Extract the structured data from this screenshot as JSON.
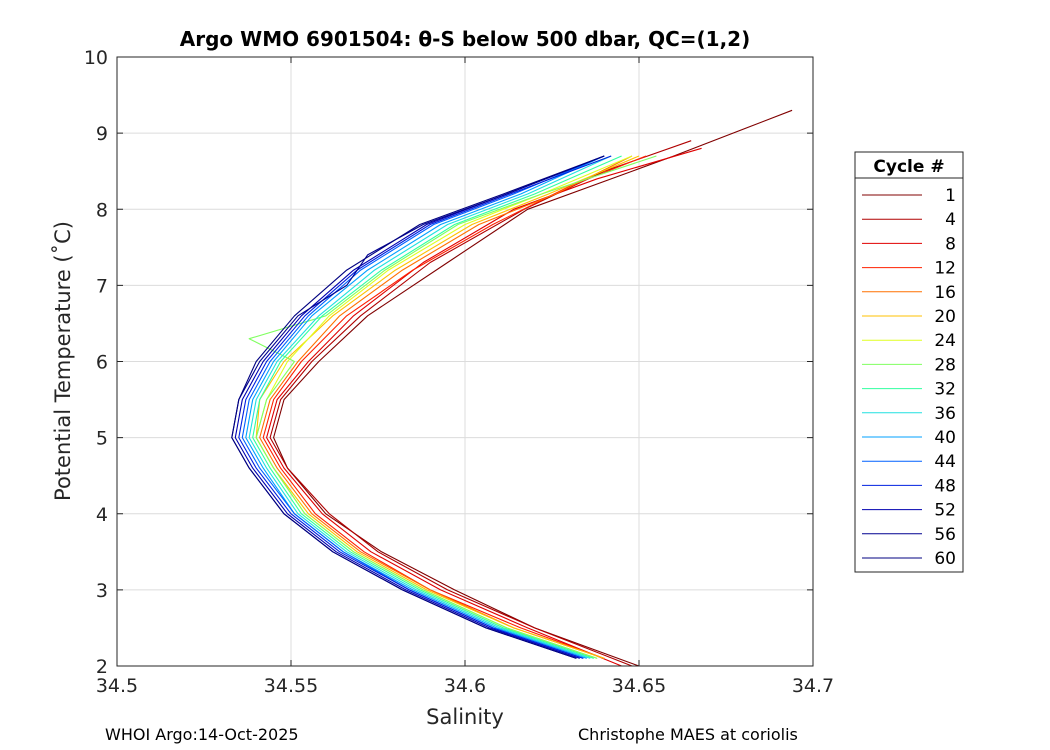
{
  "chart_data": {
    "type": "line",
    "title": "Argo WMO 6901504: θ-S below 500 dbar,  QC=(1,2)",
    "xlabel": "Salinity",
    "ylabel": "Potential Temperature (˚C)",
    "xlim": [
      34.5,
      34.7
    ],
    "ylim": [
      2,
      10
    ],
    "xticks": [
      "34.5",
      "34.55",
      "34.6",
      "34.65",
      "34.7"
    ],
    "yticks": [
      "2",
      "3",
      "4",
      "5",
      "6",
      "7",
      "8",
      "9",
      "10"
    ],
    "grid": true,
    "legend": {
      "title": "Cycle #",
      "placement": "outside-right",
      "entries": [
        {
          "label": "1",
          "color": "#800000"
        },
        {
          "label": "4",
          "color": "#b00000"
        },
        {
          "label": "8",
          "color": "#e00000"
        },
        {
          "label": "12",
          "color": "#ff2000"
        },
        {
          "label": "16",
          "color": "#ff7000"
        },
        {
          "label": "20",
          "color": "#ffc000"
        },
        {
          "label": "24",
          "color": "#e0ff20"
        },
        {
          "label": "28",
          "color": "#80ff60"
        },
        {
          "label": "32",
          "color": "#30ffa0"
        },
        {
          "label": "36",
          "color": "#20e0e0"
        },
        {
          "label": "40",
          "color": "#00a0ff"
        },
        {
          "label": "44",
          "color": "#0060ff"
        },
        {
          "label": "48",
          "color": "#0020e0"
        },
        {
          "label": "52",
          "color": "#0000b0"
        },
        {
          "label": "56",
          "color": "#000090"
        },
        {
          "label": "60",
          "color": "#000080"
        }
      ]
    },
    "series": [
      {
        "name": "1",
        "color": "#800000",
        "theta": [
          9.3,
          8.7,
          8.0,
          7.3,
          6.6,
          6.0,
          5.5,
          5.0,
          4.6,
          4.0,
          3.5,
          3.0,
          2.5,
          2.0
        ],
        "salinity": [
          34.694,
          34.66,
          34.618,
          34.595,
          34.572,
          34.558,
          34.548,
          34.545,
          34.549,
          34.56,
          34.576,
          34.597,
          34.62,
          34.65
        ]
      },
      {
        "name": "4",
        "color": "#b00000",
        "theta": [
          8.9,
          8.5,
          8.0,
          7.3,
          6.6,
          6.0,
          5.5,
          5.0,
          4.6,
          4.0,
          3.5,
          3.0,
          2.5,
          2.0
        ],
        "salinity": [
          34.665,
          34.64,
          34.617,
          34.59,
          34.57,
          34.556,
          34.547,
          34.544,
          34.549,
          34.561,
          34.575,
          34.595,
          34.62,
          34.648
        ]
      },
      {
        "name": "8",
        "color": "#e00000",
        "theta": [
          8.8,
          8.4,
          8.0,
          7.3,
          6.6,
          6.0,
          5.5,
          5.0,
          4.6,
          4.0,
          3.5,
          3.0,
          2.5,
          2.0
        ],
        "salinity": [
          34.668,
          34.638,
          34.614,
          34.588,
          34.568,
          34.555,
          34.546,
          34.543,
          34.548,
          34.559,
          34.573,
          34.593,
          34.618,
          34.645
        ]
      },
      {
        "name": "12",
        "color": "#ff2000",
        "theta": [
          8.7,
          8.3,
          7.8,
          7.2,
          6.6,
          6.0,
          5.5,
          5.0,
          4.6,
          4.0,
          3.5,
          3.0,
          2.5,
          2.1
        ],
        "salinity": [
          34.652,
          34.63,
          34.608,
          34.585,
          34.566,
          34.553,
          34.545,
          34.542,
          34.547,
          34.557,
          34.571,
          34.59,
          34.616,
          34.64
        ]
      },
      {
        "name": "16",
        "color": "#ff7000",
        "theta": [
          8.7,
          8.2,
          7.8,
          7.2,
          6.6,
          6.0,
          5.5,
          5.0,
          4.6,
          4.0,
          3.5,
          3.0,
          2.5,
          2.1
        ],
        "salinity": [
          34.648,
          34.626,
          34.604,
          34.582,
          34.564,
          34.552,
          34.544,
          34.541,
          34.546,
          34.556,
          34.57,
          34.59,
          34.614,
          34.64
        ]
      },
      {
        "name": "20",
        "color": "#ffc000",
        "theta": [
          8.7,
          8.2,
          7.8,
          7.2,
          6.6,
          6.0,
          5.5,
          5.0,
          4.6,
          4.0,
          3.5,
          3.0,
          2.5,
          2.1
        ],
        "salinity": [
          34.65,
          34.624,
          34.602,
          34.58,
          34.562,
          34.548,
          34.541,
          34.54,
          34.545,
          34.555,
          34.569,
          34.589,
          34.614,
          34.64
        ]
      },
      {
        "name": "24",
        "color": "#e0ff20",
        "theta": [
          8.7,
          8.2,
          7.8,
          7.2,
          6.6,
          6.0,
          5.5,
          5.0,
          4.6,
          4.0,
          3.5,
          3.0,
          2.5,
          2.1
        ],
        "salinity": [
          34.648,
          34.622,
          34.6,
          34.578,
          34.561,
          34.549,
          34.543,
          34.54,
          34.545,
          34.554,
          34.568,
          34.588,
          34.612,
          34.638
        ]
      },
      {
        "name": "28",
        "color": "#80ff60",
        "theta": [
          8.7,
          8.2,
          7.8,
          7.2,
          6.6,
          6.3,
          6.0,
          5.5,
          5.0,
          4.6,
          4.0,
          3.5,
          3.0,
          2.5,
          2.1
        ],
        "salinity": [
          34.655,
          34.622,
          34.598,
          34.577,
          34.56,
          34.538,
          34.551,
          34.543,
          34.54,
          34.545,
          34.554,
          34.568,
          34.588,
          34.612,
          34.638
        ]
      },
      {
        "name": "32",
        "color": "#30ffa0",
        "theta": [
          8.7,
          8.2,
          7.8,
          7.2,
          6.6,
          6.0,
          5.5,
          5.0,
          4.6,
          4.0,
          3.5,
          3.0,
          2.5,
          2.1
        ],
        "salinity": [
          34.645,
          34.62,
          34.597,
          34.576,
          34.559,
          34.547,
          34.541,
          34.539,
          34.544,
          34.553,
          34.567,
          34.587,
          34.611,
          34.637
        ]
      },
      {
        "name": "36",
        "color": "#20e0e0",
        "theta": [
          8.7,
          8.2,
          7.8,
          7.2,
          6.6,
          6.0,
          5.5,
          5.0,
          4.6,
          4.0,
          3.5,
          3.0,
          2.5,
          2.1
        ],
        "salinity": [
          34.642,
          34.618,
          34.595,
          34.574,
          34.558,
          34.546,
          34.54,
          34.538,
          34.543,
          34.552,
          34.566,
          34.586,
          34.61,
          34.636
        ]
      },
      {
        "name": "40",
        "color": "#00a0ff",
        "theta": [
          8.7,
          8.2,
          7.8,
          7.2,
          6.6,
          6.0,
          5.5,
          5.0,
          4.6,
          4.0,
          3.5,
          3.0,
          2.5,
          2.1
        ],
        "salinity": [
          34.64,
          34.616,
          34.593,
          34.572,
          34.556,
          34.545,
          34.539,
          34.537,
          34.542,
          34.551,
          34.565,
          34.585,
          34.609,
          34.635
        ]
      },
      {
        "name": "44",
        "color": "#0060ff",
        "theta": [
          8.7,
          8.2,
          7.8,
          7.2,
          6.6,
          6.0,
          5.5,
          5.0,
          4.6,
          4.0,
          3.5,
          3.0,
          2.5,
          2.1
        ],
        "salinity": [
          34.64,
          34.614,
          34.591,
          34.57,
          34.555,
          34.544,
          34.538,
          34.536,
          34.541,
          34.551,
          34.565,
          34.584,
          34.608,
          34.634
        ]
      },
      {
        "name": "48",
        "color": "#0020e0",
        "theta": [
          8.7,
          8.2,
          7.8,
          7.2,
          6.6,
          6.0,
          5.5,
          5.0,
          4.6,
          4.0,
          3.5,
          3.0,
          2.5,
          2.1
        ],
        "salinity": [
          34.642,
          34.613,
          34.59,
          34.569,
          34.554,
          34.543,
          34.537,
          34.535,
          34.54,
          34.55,
          34.564,
          34.584,
          34.608,
          34.634
        ]
      },
      {
        "name": "52",
        "color": "#0000b0",
        "theta": [
          8.7,
          8.2,
          7.8,
          7.2,
          6.6,
          6.0,
          5.5,
          5.0,
          4.6,
          4.0,
          3.5,
          3.0,
          2.5,
          2.1
        ],
        "salinity": [
          34.64,
          34.612,
          34.589,
          34.568,
          34.553,
          34.542,
          34.536,
          34.534,
          34.539,
          34.549,
          34.563,
          34.583,
          34.607,
          34.633
        ]
      },
      {
        "name": "56",
        "color": "#000090",
        "theta": [
          8.7,
          8.2,
          7.8,
          7.4,
          7.0,
          6.6,
          6.0,
          5.5,
          5.0,
          4.6,
          4.0,
          3.5,
          3.0,
          2.5,
          2.1
        ],
        "salinity": [
          34.64,
          34.612,
          34.588,
          34.572,
          34.566,
          34.552,
          34.541,
          34.535,
          34.533,
          34.538,
          34.548,
          34.562,
          34.582,
          34.606,
          34.632
        ]
      },
      {
        "name": "60",
        "color": "#000080",
        "theta": [
          8.7,
          8.2,
          7.8,
          7.2,
          6.6,
          6.0,
          5.5,
          5.0,
          4.6,
          4.0,
          3.5,
          3.0,
          2.5,
          2.1
        ],
        "salinity": [
          34.64,
          34.611,
          34.587,
          34.566,
          34.551,
          34.54,
          34.535,
          34.533,
          34.538,
          34.548,
          34.562,
          34.582,
          34.606,
          34.632
        ]
      }
    ]
  },
  "footer": {
    "left": "WHOI Argo:14-Oct-2025",
    "right": "Christophe MAES at coriolis"
  }
}
